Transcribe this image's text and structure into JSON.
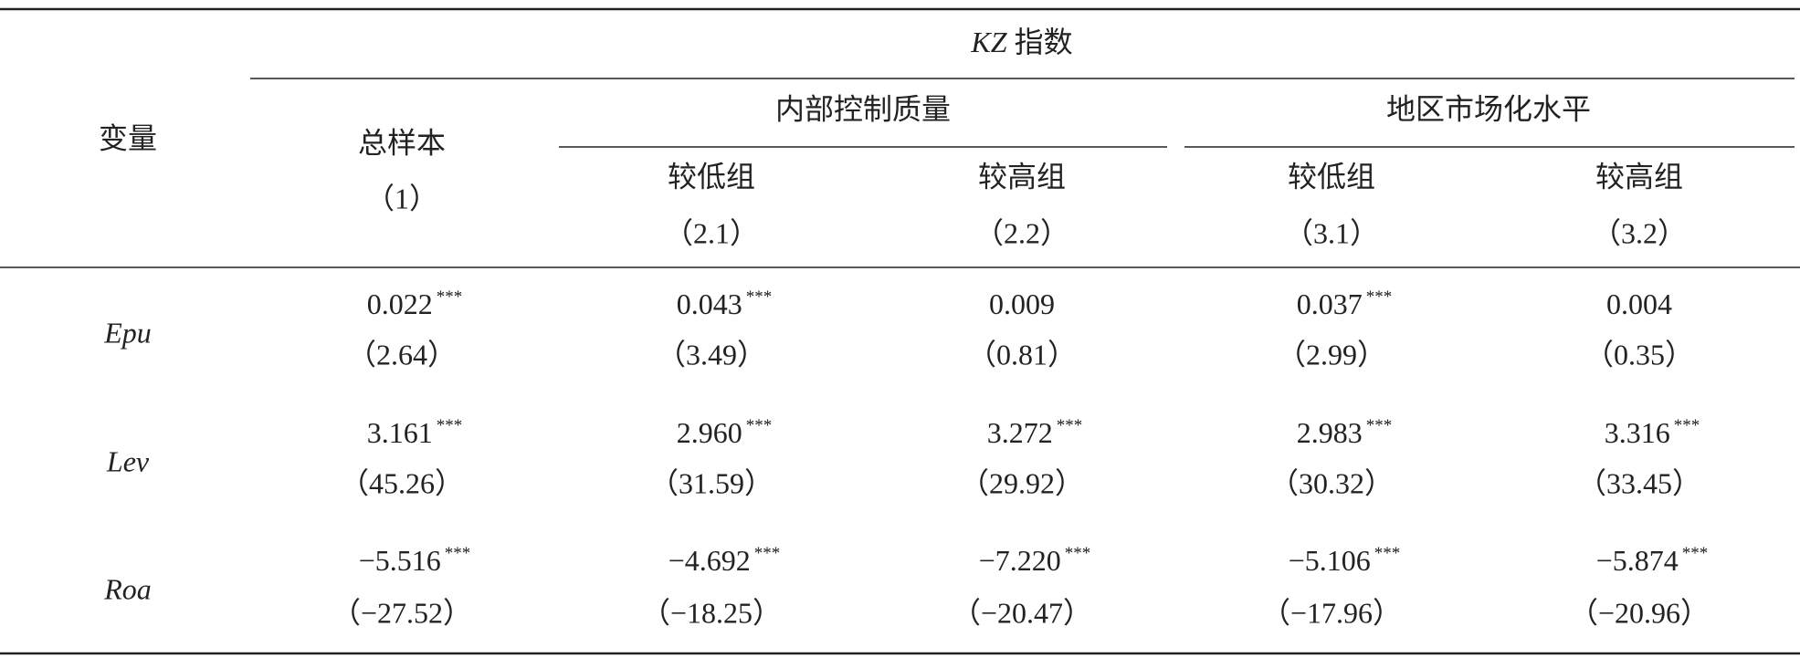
{
  "header": {
    "variable": "变量",
    "index_title": {
      "italic": "KZ",
      "text": "指数"
    },
    "groups": [
      "内部控制质量",
      "地区市场化水平"
    ],
    "columns": [
      {
        "name": "总样本",
        "id": "（1）"
      },
      {
        "name": "较低组",
        "id": "（2.1）"
      },
      {
        "name": "较高组",
        "id": "（2.2）"
      },
      {
        "name": "较低组",
        "id": "（3.1）"
      },
      {
        "name": "较高组",
        "id": "（3.2）"
      }
    ]
  },
  "table": {
    "rows": [
      {
        "variable": "Epu",
        "cells": [
          {
            "coef": "0.022",
            "stars": "***",
            "t": "（2.64）"
          },
          {
            "coef": "0.043",
            "stars": "***",
            "t": "（3.49）"
          },
          {
            "coef": "0.009",
            "t": "（0.81）"
          },
          {
            "coef": "0.037",
            "stars": "***",
            "t": "（2.99）"
          },
          {
            "coef": "0.004",
            "t": "（0.35）"
          }
        ]
      },
      {
        "variable": "Lev",
        "cells": [
          {
            "coef": "3.161",
            "stars": "***",
            "t": "（45.26）"
          },
          {
            "coef": "2.960",
            "stars": "***",
            "t": "（31.59）"
          },
          {
            "coef": "3.272",
            "stars": "***",
            "t": "（29.92）"
          },
          {
            "coef": "2.983",
            "stars": "***",
            "t": "（30.32）"
          },
          {
            "coef": "3.316",
            "stars": "***",
            "t": "（33.45）"
          }
        ]
      },
      {
        "variable": "Roa",
        "cells": [
          {
            "coef": "−5.516",
            "stars": "***",
            "t": "（−27.52）"
          },
          {
            "coef": "−4.692",
            "stars": "***",
            "t": "（−18.25）"
          },
          {
            "coef": "−7.220",
            "stars": "***",
            "t": "（−20.47）"
          },
          {
            "coef": "−5.106",
            "stars": "***",
            "t": "（−17.96）"
          },
          {
            "coef": "−5.874",
            "stars": "***",
            "t": "（−20.96）"
          }
        ]
      }
    ]
  }
}
